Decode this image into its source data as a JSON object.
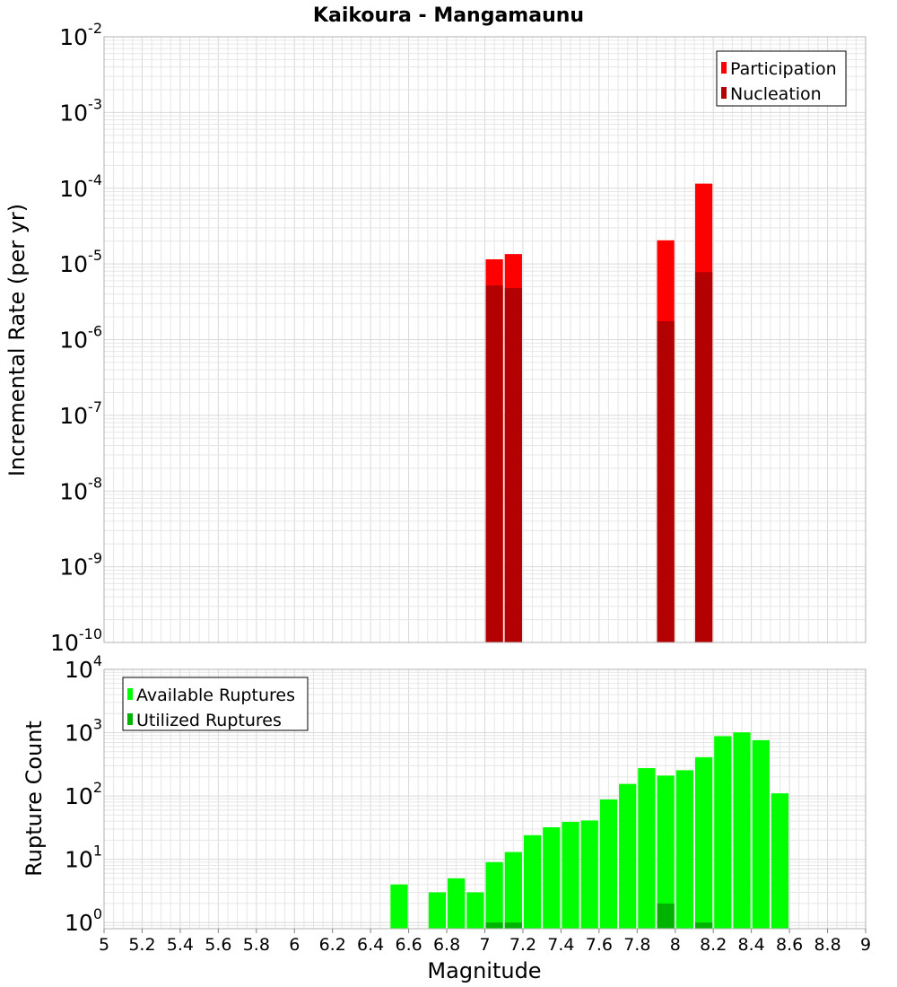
{
  "title": "Kaikoura - Mangamaunu",
  "colors": {
    "participation": "#ff0000",
    "nucleation": "#b30000",
    "available": "#00ff00",
    "utilized": "#00b300"
  },
  "chart_data": [
    {
      "type": "bar",
      "title": "Kaikoura - Mangamaunu",
      "xlabel": "Magnitude",
      "ylabel": "Incremental Rate (per yr)",
      "yscale": "log",
      "ylim": [
        1e-10,
        0.01
      ],
      "xlim": [
        5,
        9
      ],
      "grid": true,
      "legend_position": "top-right",
      "y_ticks": [
        {
          "base": "10",
          "exp": "-10"
        },
        {
          "base": "10",
          "exp": "-9"
        },
        {
          "base": "10",
          "exp": "-8"
        },
        {
          "base": "10",
          "exp": "-7"
        },
        {
          "base": "10",
          "exp": "-6"
        },
        {
          "base": "10",
          "exp": "-5"
        },
        {
          "base": "10",
          "exp": "-4"
        },
        {
          "base": "10",
          "exp": "-3"
        },
        {
          "base": "10",
          "exp": "-2"
        }
      ],
      "series": [
        {
          "name": "Participation",
          "x": [
            7.05,
            7.15,
            7.95,
            8.15
          ],
          "values": [
            1.15e-05,
            1.35e-05,
            2.05e-05,
            0.000115
          ]
        },
        {
          "name": "Nucleation",
          "x": [
            7.05,
            7.15,
            7.95,
            8.15
          ],
          "values": [
            5.2e-06,
            4.8e-06,
            1.75e-06,
            7.8e-06
          ]
        }
      ]
    },
    {
      "type": "bar",
      "xlabel": "Magnitude",
      "ylabel": "Rupture Count",
      "yscale": "log",
      "ylim": [
        0.8,
        10000
      ],
      "xlim": [
        5,
        9
      ],
      "grid": true,
      "legend_position": "top-left",
      "y_ticks": [
        {
          "base": "10",
          "exp": "0"
        },
        {
          "base": "10",
          "exp": "1"
        },
        {
          "base": "10",
          "exp": "2"
        },
        {
          "base": "10",
          "exp": "3"
        },
        {
          "base": "10",
          "exp": "4"
        }
      ],
      "x_ticks": [
        "5",
        "5.2",
        "5.4",
        "5.6",
        "5.8",
        "6",
        "6.2",
        "6.4",
        "6.6",
        "6.8",
        "7",
        "7.2",
        "7.4",
        "7.6",
        "7.8",
        "8",
        "8.2",
        "8.4",
        "8.6",
        "8.8",
        "9"
      ],
      "series": [
        {
          "name": "Available Ruptures",
          "x": [
            6.55,
            6.75,
            6.85,
            6.95,
            7.05,
            7.15,
            7.25,
            7.35,
            7.45,
            7.55,
            7.65,
            7.75,
            7.85,
            7.95,
            8.05,
            8.15,
            8.25,
            8.35,
            8.45,
            8.55
          ],
          "values": [
            4,
            3,
            5,
            3,
            9,
            13,
            24,
            32,
            39,
            41,
            88,
            155,
            275,
            210,
            255,
            410,
            880,
            1010,
            760,
            110
          ]
        },
        {
          "name": "Utilized Ruptures",
          "x": [
            7.05,
            7.15,
            7.95,
            8.15
          ],
          "values": [
            1,
            1,
            2,
            1
          ]
        }
      ]
    }
  ]
}
